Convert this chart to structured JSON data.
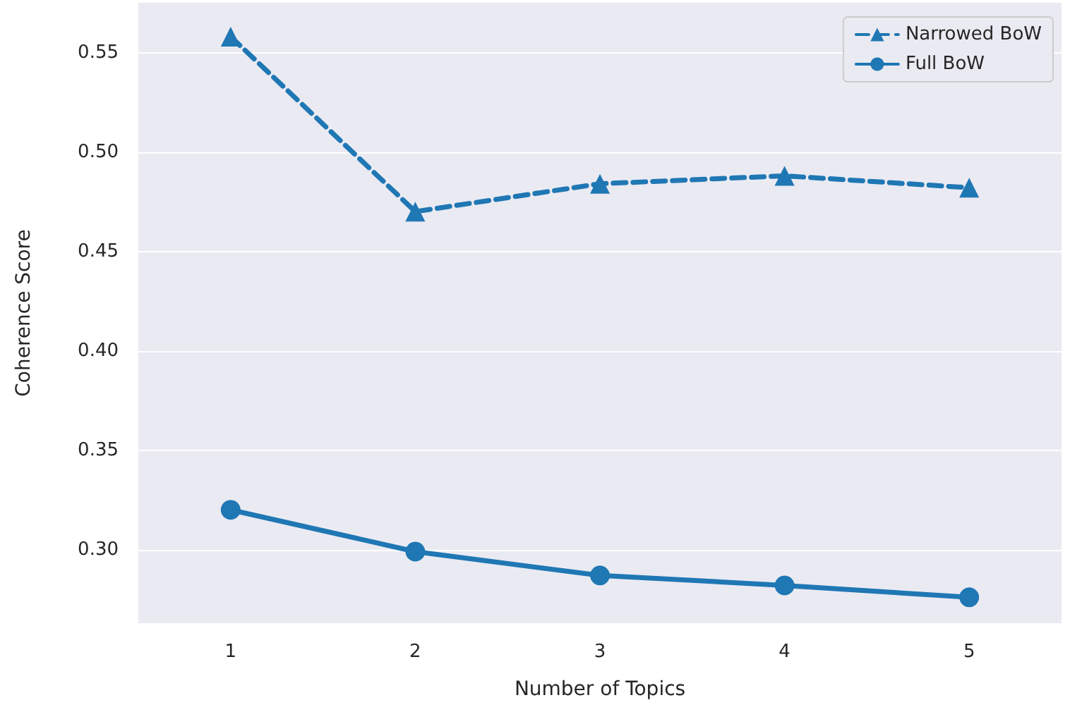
{
  "chart_data": {
    "type": "line",
    "xlabel": "Number of Topics",
    "ylabel": "Coherence Score",
    "categories": [
      "1",
      "2",
      "3",
      "4",
      "5"
    ],
    "series": [
      {
        "name": "Narrowed BoW",
        "color": "#1f77b4",
        "marker": "triangle",
        "line_style": "dashed",
        "values": [
          0.558,
          0.47,
          0.484,
          0.488,
          0.482
        ]
      },
      {
        "name": "Full BoW",
        "color": "#1f77b4",
        "marker": "circle",
        "line_style": "solid",
        "values": [
          0.32,
          0.299,
          0.287,
          0.282,
          0.276
        ]
      }
    ],
    "ylim": [
      0.263,
      0.575
    ],
    "yticks": [
      {
        "value": 0.3,
        "label": "0.30"
      },
      {
        "value": 0.35,
        "label": "0.35"
      },
      {
        "value": 0.4,
        "label": "0.40"
      },
      {
        "value": 0.45,
        "label": "0.45"
      },
      {
        "value": 0.5,
        "label": "0.50"
      },
      {
        "value": 0.55,
        "label": "0.55"
      }
    ],
    "grid": "y",
    "legend": "top right"
  }
}
